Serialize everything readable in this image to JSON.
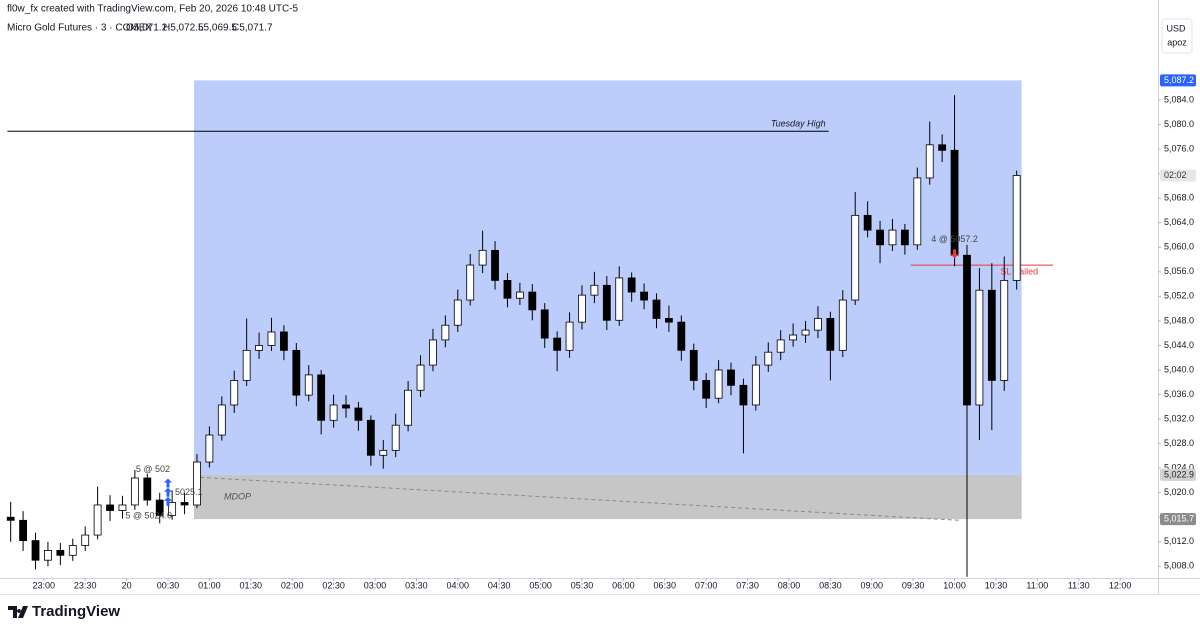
{
  "header": {
    "credit": "fl0w_fx created with TradingView.com, Feb 20, 2026 10:48 UTC-5",
    "symbol": "Micro Gold Futures · 3 · COMEX",
    "ohlc": [
      "O5,071.2",
      "H5,072.5",
      "L5,069.5",
      "C5,071.7"
    ],
    "currency": "USD",
    "scale_mode": "apoz",
    "logo": "TradingView"
  },
  "chart_data": {
    "type": "candlestick",
    "x": [
      -1.4,
      -1.25,
      -1.1,
      -0.95,
      -0.8,
      -0.65,
      -0.5,
      -0.35,
      -0.2,
      -0.05,
      0.1,
      0.25,
      0.4,
      0.55,
      0.7,
      0.85,
      1,
      1.15,
      1.3,
      1.45,
      1.6,
      1.75,
      1.9,
      2.05,
      2.2,
      2.35,
      2.5,
      2.65,
      2.8,
      2.95,
      3.1,
      3.25,
      3.4,
      3.55,
      3.7,
      3.85,
      4,
      4.15,
      4.3,
      4.45,
      4.6,
      4.75,
      4.9,
      5.05,
      5.2,
      5.35,
      5.5,
      5.65,
      5.8,
      5.95,
      6.1,
      6.25,
      6.4,
      6.55,
      6.7,
      6.85,
      7,
      7.15,
      7.3,
      7.45,
      7.6,
      7.75,
      7.9,
      8.05,
      8.2,
      8.35,
      8.5,
      8.65,
      8.8,
      8.95,
      9.1,
      9.25,
      9.4,
      9.55,
      9.7,
      9.85,
      10,
      10.15,
      10.3,
      10.45,
      10.6,
      10.75
    ],
    "ohlc": [
      [
        5016.0,
        5018.5,
        5012.0,
        5015.5
      ],
      [
        5015.5,
        5017.0,
        5010.5,
        5012.2
      ],
      [
        5012.2,
        5013.5,
        5007.5,
        5009.0
      ],
      [
        5009.0,
        5012.0,
        5008.0,
        5010.6
      ],
      [
        5010.6,
        5011.8,
        5008.2,
        5009.8
      ],
      [
        5009.8,
        5012.5,
        5008.9,
        5011.4
      ],
      [
        5011.4,
        5014.5,
        5010.5,
        5013.1
      ],
      [
        5013.1,
        5021.0,
        5012.4,
        5018.0
      ],
      [
        5018.0,
        5019.6,
        5015.4,
        5017.1
      ],
      [
        5017.1,
        5019.5,
        5015.8,
        5018.0
      ],
      [
        5018.0,
        5023.7,
        5017.2,
        5022.4
      ],
      [
        5022.4,
        5023.1,
        5017.9,
        5018.8
      ],
      [
        5018.8,
        5020.0,
        5015.0,
        5016.3
      ],
      [
        5016.3,
        5020.4,
        5015.6,
        5018.4
      ],
      [
        5018.4,
        5020.0,
        5016.5,
        5018.0
      ],
      [
        5018.0,
        5026.3,
        5017.5,
        5025.0
      ],
      [
        5025.0,
        5030.8,
        5024.1,
        5029.4
      ],
      [
        5029.4,
        5035.7,
        5028.5,
        5034.3
      ],
      [
        5034.3,
        5039.9,
        5033.0,
        5038.3
      ],
      [
        5038.3,
        5048.4,
        5037.4,
        5043.2
      ],
      [
        5043.2,
        5046.1,
        5041.8,
        5044.0
      ],
      [
        5044.0,
        5048.5,
        5043.1,
        5046.2
      ],
      [
        5046.2,
        5047.3,
        5041.6,
        5043.2
      ],
      [
        5043.2,
        5044.4,
        5034.1,
        5035.9
      ],
      [
        5035.9,
        5040.8,
        5034.9,
        5039.2
      ],
      [
        5039.2,
        5040.0,
        5029.5,
        5031.8
      ],
      [
        5031.8,
        5036.0,
        5030.6,
        5034.3
      ],
      [
        5034.3,
        5035.9,
        5032.2,
        5033.8
      ],
      [
        5033.8,
        5034.8,
        5030.1,
        5031.8
      ],
      [
        5031.8,
        5032.6,
        5024.4,
        5026.1
      ],
      [
        5026.1,
        5028.6,
        5023.9,
        5026.9
      ],
      [
        5026.9,
        5032.9,
        5025.8,
        5031.0
      ],
      [
        5031.0,
        5038.2,
        5030.0,
        5036.7
      ],
      [
        5036.7,
        5042.4,
        5035.6,
        5040.8
      ],
      [
        5040.8,
        5046.7,
        5039.8,
        5044.9
      ],
      [
        5044.9,
        5048.9,
        5043.7,
        5047.3
      ],
      [
        5047.3,
        5053.1,
        5046.2,
        5051.4
      ],
      [
        5051.4,
        5058.9,
        5050.5,
        5057.1
      ],
      [
        5057.1,
        5062.7,
        5055.8,
        5059.5
      ],
      [
        5059.5,
        5061.0,
        5053.1,
        5054.6
      ],
      [
        5054.6,
        5055.8,
        5050.2,
        5051.7
      ],
      [
        5051.7,
        5054.2,
        5050.6,
        5052.7
      ],
      [
        5052.7,
        5054.0,
        5048.1,
        5049.8
      ],
      [
        5049.8,
        5050.9,
        5043.6,
        5045.2
      ],
      [
        5045.2,
        5046.3,
        5039.8,
        5043.2
      ],
      [
        5043.2,
        5049.4,
        5042.0,
        5047.8
      ],
      [
        5047.8,
        5053.8,
        5046.6,
        5052.2
      ],
      [
        5052.2,
        5056.0,
        5050.9,
        5053.8
      ],
      [
        5053.8,
        5055.3,
        5046.5,
        5048.1
      ],
      [
        5048.1,
        5056.9,
        5047.2,
        5055.0
      ],
      [
        5055.0,
        5055.9,
        5051.1,
        5052.7
      ],
      [
        5052.7,
        5054.1,
        5049.9,
        5051.4
      ],
      [
        5051.4,
        5052.5,
        5046.8,
        5048.4
      ],
      [
        5048.4,
        5050.5,
        5046.2,
        5047.8
      ],
      [
        5047.8,
        5048.9,
        5041.5,
        5043.2
      ],
      [
        5043.2,
        5044.3,
        5036.7,
        5038.3
      ],
      [
        5038.3,
        5039.5,
        5033.8,
        5035.4
      ],
      [
        5035.4,
        5041.6,
        5034.6,
        5040.0
      ],
      [
        5040.0,
        5041.2,
        5035.9,
        5037.5
      ],
      [
        5037.5,
        5038.6,
        5026.4,
        5034.3
      ],
      [
        5034.3,
        5042.3,
        5033.4,
        5040.8
      ],
      [
        5040.8,
        5044.5,
        5039.7,
        5042.9
      ],
      [
        5042.9,
        5046.5,
        5041.6,
        5044.9
      ],
      [
        5044.9,
        5047.6,
        5043.8,
        5045.7
      ],
      [
        5045.7,
        5048.0,
        5044.4,
        5046.5
      ],
      [
        5046.5,
        5050.4,
        5045.2,
        5048.4
      ],
      [
        5048.4,
        5049.5,
        5038.3,
        5043.2
      ],
      [
        5043.2,
        5053.0,
        5042.1,
        5051.4
      ],
      [
        5051.4,
        5069.0,
        5050.6,
        5065.2
      ],
      [
        5065.2,
        5067.5,
        5061.6,
        5062.8
      ],
      [
        5062.8,
        5064.3,
        5057.4,
        5060.4
      ],
      [
        5060.4,
        5064.6,
        5059.4,
        5062.8
      ],
      [
        5062.8,
        5063.8,
        5058.8,
        5060.4
      ],
      [
        5060.4,
        5073.0,
        5059.6,
        5071.3
      ],
      [
        5071.3,
        5080.5,
        5070.2,
        5076.7
      ],
      [
        5076.7,
        5078.4,
        5073.9,
        5075.8
      ],
      [
        5075.8,
        5084.8,
        5056.9,
        5058.7
      ],
      [
        5058.7,
        5060.4,
        5006.3,
        5034.3
      ],
      [
        5034.3,
        5056.6,
        5028.6,
        5053.0
      ],
      [
        5053.0,
        5057.4,
        5030.2,
        5038.3
      ],
      [
        5038.3,
        5058.5,
        5036.6,
        5054.6
      ],
      [
        5054.6,
        5072.5,
        5053.1,
        5071.7
      ]
    ],
    "up_color": "#ffffff",
    "down_color": "#000000",
    "border_color": "#000000",
    "xlim": [
      -1.529,
      12.457
    ],
    "ylim": [
      5006.1,
      5100.3
    ],
    "grid": false,
    "xticks": [
      {
        "value": -1,
        "label": "23:00"
      },
      {
        "value": -0.5,
        "label": "23:30"
      },
      {
        "value": 0,
        "label": "20"
      },
      {
        "value": 0.5,
        "label": "00:30"
      },
      {
        "value": 1,
        "label": "01:00"
      },
      {
        "value": 1.5,
        "label": "01:30"
      },
      {
        "value": 2,
        "label": "02:00"
      },
      {
        "value": 2.5,
        "label": "02:30"
      },
      {
        "value": 3,
        "label": "03:00"
      },
      {
        "value": 3.5,
        "label": "03:30"
      },
      {
        "value": 4,
        "label": "04:00"
      },
      {
        "value": 4.5,
        "label": "04:30"
      },
      {
        "value": 5,
        "label": "05:00"
      },
      {
        "value": 5.5,
        "label": "05:30"
      },
      {
        "value": 6,
        "label": "06:00"
      },
      {
        "value": 6.5,
        "label": "06:30"
      },
      {
        "value": 7,
        "label": "07:00"
      },
      {
        "value": 7.5,
        "label": "07:30"
      },
      {
        "value": 8,
        "label": "08:00"
      },
      {
        "value": 8.5,
        "label": "08:30"
      },
      {
        "value": 9,
        "label": "09:00"
      },
      {
        "value": 9.5,
        "label": "09:30"
      },
      {
        "value": 10,
        "label": "10:00"
      },
      {
        "value": 10.5,
        "label": "10:30"
      },
      {
        "value": 11,
        "label": "11:00"
      },
      {
        "value": 11.5,
        "label": "11:30"
      },
      {
        "value": 12,
        "label": "12:00"
      }
    ],
    "yticks": [
      {
        "value": 5008,
        "label": "5,008.0"
      },
      {
        "value": 5012,
        "label": "5,012.0"
      },
      {
        "value": 5016,
        "label": "5,016.0"
      },
      {
        "value": 5020,
        "label": "5,020.0"
      },
      {
        "value": 5024,
        "label": "5,024.0"
      },
      {
        "value": 5028,
        "label": "5,028.0"
      },
      {
        "value": 5032,
        "label": "5,032.0"
      },
      {
        "value": 5036,
        "label": "5,036.0"
      },
      {
        "value": 5040,
        "label": "5,040.0"
      },
      {
        "value": 5044,
        "label": "5,044.0"
      },
      {
        "value": 5048,
        "label": "5,048.0"
      },
      {
        "value": 5052,
        "label": "5,052.0"
      },
      {
        "value": 5056,
        "label": "5,056.0"
      },
      {
        "value": 5060,
        "label": "5,060.0"
      },
      {
        "value": 5064,
        "label": "5,064.0"
      },
      {
        "value": 5068,
        "label": "5,068.0"
      },
      {
        "value": 5072,
        "label": "5,072.0"
      },
      {
        "value": 5076,
        "label": "5,076.0"
      },
      {
        "value": 5080,
        "label": "5,080.0"
      },
      {
        "value": 5084,
        "label": "5,084.0"
      }
    ],
    "price_labels": [
      {
        "value": 5087.2,
        "label": "5,087.2",
        "color": "#2962ff",
        "text_color": "#ffffff"
      },
      {
        "value": 5071.7,
        "label": "02:02",
        "color": "#e6e7eb",
        "text_color": "#333333"
      },
      {
        "value": 5022.9,
        "label": "5,022.9",
        "color": "#d1d1d1",
        "text_color": "#222222"
      },
      {
        "value": 5015.7,
        "label": "5,015.7",
        "color": "#8c8c8c",
        "text_color": "#ffffff"
      }
    ],
    "zones": [
      {
        "x0": 0.814,
        "x1": 10.81,
        "low": 5022.9,
        "high": 5087.2,
        "color": "#bccdfb"
      },
      {
        "x0": 0.814,
        "x1": 10.81,
        "low": 5015.7,
        "high": 5022.9,
        "color": "#c6c6c6",
        "label": "MDOP"
      }
    ],
    "lines": [
      {
        "label": "Tuesday High",
        "price": 5078.9,
        "x0": -1.44,
        "x1": 8.48,
        "color": "#000000",
        "label_pos": "above-end"
      },
      {
        "label": "SL trailed",
        "price": 5057.1,
        "x0": 9.47,
        "x1": 11.19,
        "color": "#e53935",
        "label_pos": "after-end"
      }
    ],
    "dashed_line": {
      "x": [
        0.886,
        10.06
      ],
      "y": [
        5022.5,
        5015.5
      ],
      "color": "#8a8a8a"
    },
    "executions": [
      {
        "label": "4 @ 5057.2",
        "x": 10.0,
        "price": 5059.0,
        "side": "sell",
        "label_side": "above"
      },
      {
        "label": "5 @ 502",
        "x": 0.5,
        "price": 5021.5,
        "side": "buy",
        "label_side": "left-up"
      },
      {
        "label": "5025.1",
        "x": 0.5,
        "price": 5020.0,
        "side": "buy",
        "label_side": "right"
      },
      {
        "label": "5 @ 5024.0",
        "x": 0.5,
        "price": 5018.5,
        "side": "buy",
        "label_side": "left-down"
      }
    ],
    "buy_color": "#2962ff",
    "sell_color": "#f23645"
  }
}
